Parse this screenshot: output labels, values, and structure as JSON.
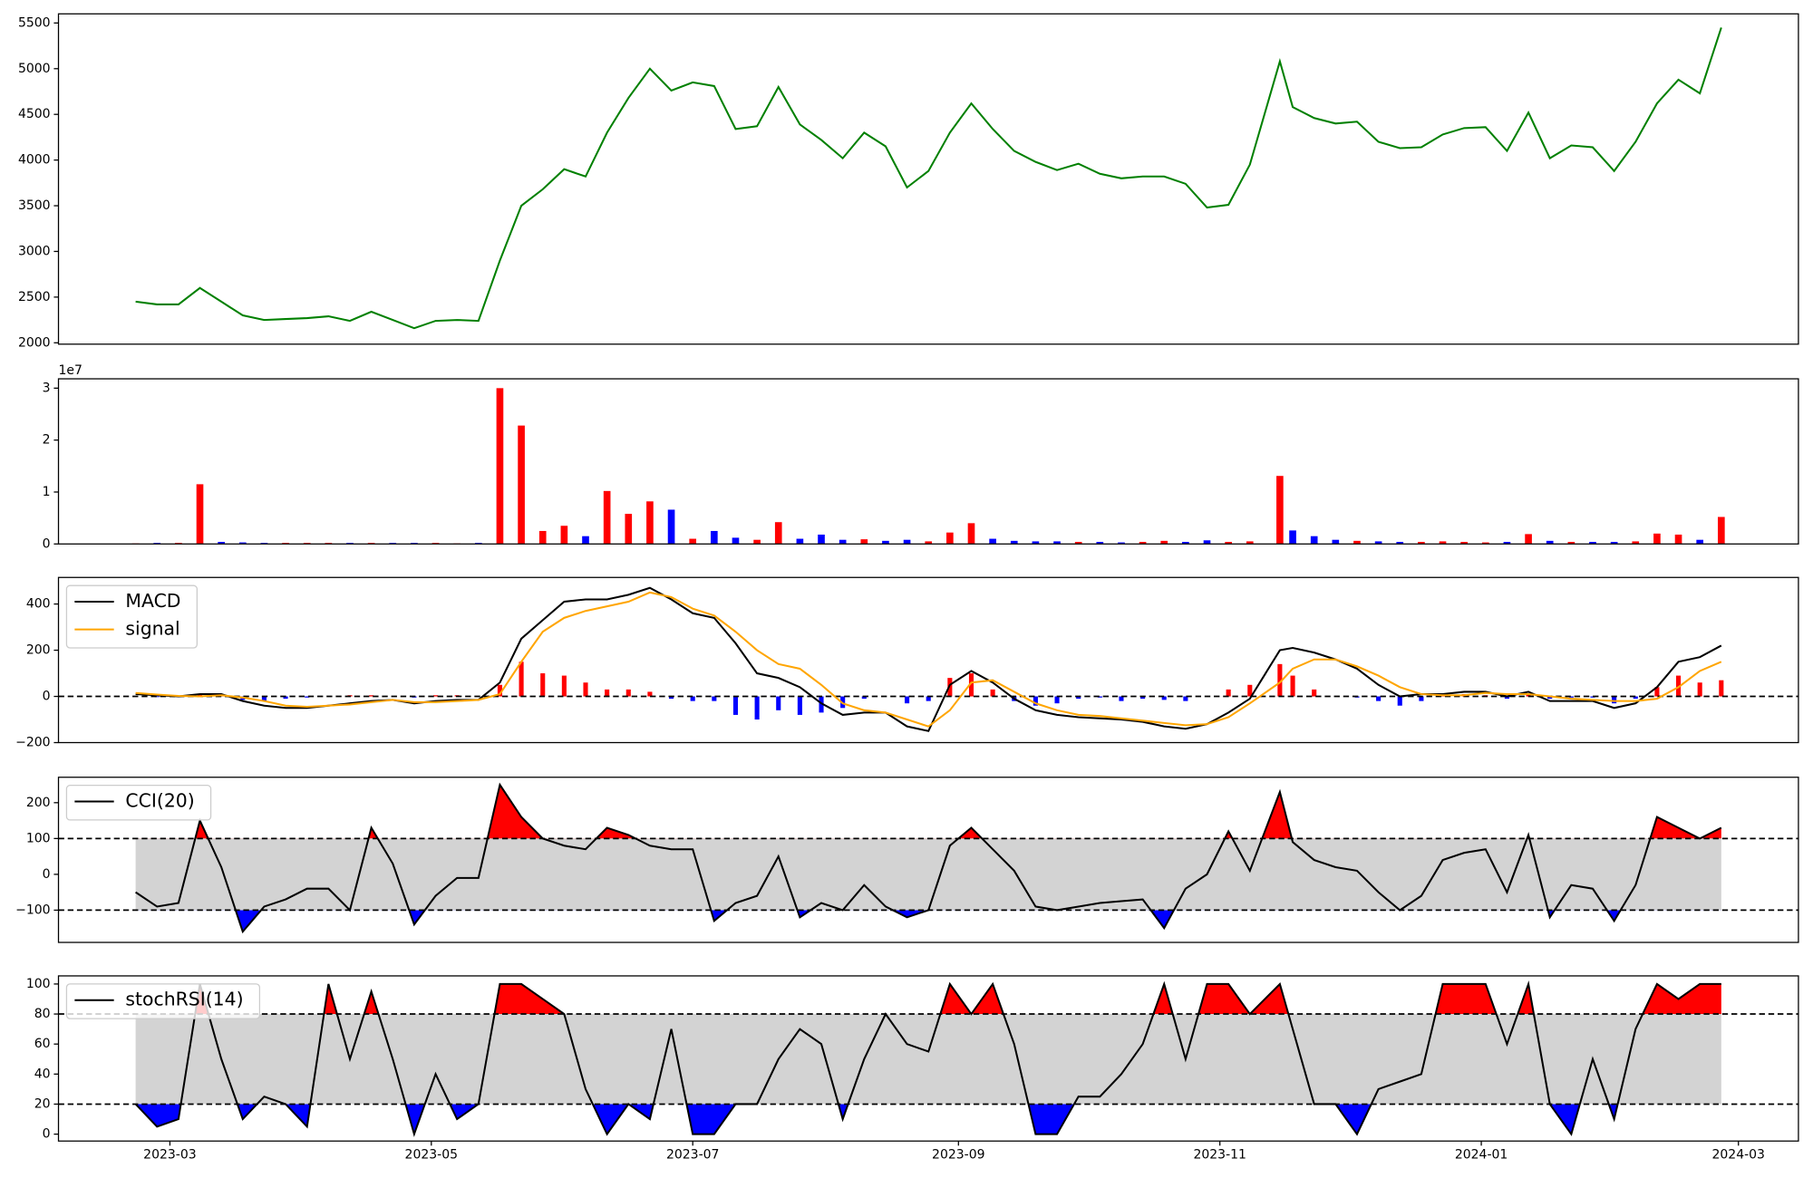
{
  "chart_data": [
    {
      "type": "line",
      "xlim": [
        19391,
        19797
      ],
      "x": [
        19409,
        19414,
        19419,
        19424,
        19429,
        19434,
        19439,
        19444,
        19449,
        19454,
        19459,
        19464,
        19469,
        19474,
        19479,
        19484,
        19489,
        19494,
        19499,
        19504,
        19509,
        19514,
        19519,
        19524,
        19529,
        19534,
        19539,
        19544,
        19549,
        19554,
        19559,
        19564,
        19569,
        19574,
        19579,
        19584,
        19589,
        19594,
        19599,
        19604,
        19609,
        19614,
        19619,
        19624,
        19629,
        19634,
        19639,
        19644,
        19649,
        19654,
        19659,
        19664,
        19669,
        19676,
        19679,
        19684,
        19689,
        19694,
        19699,
        19704,
        19709,
        19714,
        19719,
        19724,
        19729,
        19734,
        19739,
        19744,
        19749,
        19754,
        19759,
        19764,
        19769,
        19774,
        19779
      ],
      "series": [
        {
          "color": "green",
          "values": [
            2450,
            2420,
            2420,
            2600,
            2450,
            2300,
            2250,
            2260,
            2270,
            2290,
            2240,
            2340,
            2250,
            2160,
            2240,
            2250,
            2240,
            2900,
            3500,
            3680,
            3900,
            3820,
            4300,
            4680,
            5000,
            4760,
            4850,
            4810,
            4340,
            4370,
            4800,
            4390,
            4220,
            4020,
            4300,
            4150,
            3700,
            3880,
            4300,
            4620,
            4340,
            4100,
            3980,
            3890,
            3960,
            3850,
            3800,
            3820,
            3820,
            3740,
            3480,
            3510,
            3950,
            5080,
            4580,
            4460,
            4400,
            4420,
            4200,
            4130,
            4140,
            4280,
            4350,
            4360,
            4100,
            4520,
            4020,
            4160,
            4140,
            3880,
            4200,
            4620,
            4880,
            4730,
            5450
          ]
        }
      ],
      "ylim": [
        1985,
        5600
      ],
      "yticks": [
        2000,
        2500,
        3000,
        3500,
        4000,
        4500,
        5000,
        5500
      ]
    },
    {
      "type": "bar",
      "up_color": "red",
      "down_color": "blue",
      "offset_label": "1e7",
      "values": [
        100000,
        200000,
        200000,
        11500000,
        400000,
        300000,
        200000,
        200000,
        200000,
        200000,
        200000,
        200000,
        200000,
        200000,
        200000,
        100000,
        200000,
        30000000,
        22800000,
        2500000,
        3500000,
        1500000,
        10200000,
        5800000,
        8200000,
        6600000,
        1000000,
        2500000,
        1200000,
        800000,
        4200000,
        1000000,
        1800000,
        800000,
        900000,
        600000,
        800000,
        500000,
        2200000,
        4000000,
        1000000,
        600000,
        500000,
        500000,
        400000,
        400000,
        300000,
        400000,
        600000,
        400000,
        700000,
        400000,
        500000,
        13100000,
        2600000,
        1500000,
        800000,
        600000,
        500000,
        400000,
        400000,
        500000,
        400000,
        300000,
        400000,
        1900000,
        600000,
        400000,
        400000,
        400000,
        500000,
        2000000,
        1800000,
        800000,
        5200000
      ],
      "ylim": [
        0,
        31800000
      ],
      "yticks": [
        0,
        {
          "value": 10000000,
          "label": "1"
        },
        {
          "value": 20000000,
          "label": "2"
        },
        {
          "value": 30000000,
          "label": "3"
        }
      ]
    },
    {
      "type": "macd",
      "legend": "upper left",
      "series": [
        {
          "name": "MACD",
          "color": "black",
          "values": [
            10,
            5,
            0,
            10,
            10,
            -20,
            -40,
            -50,
            -50,
            -40,
            -30,
            -20,
            -15,
            -30,
            -20,
            -15,
            -15,
            60,
            250,
            330,
            410,
            420,
            420,
            440,
            470,
            420,
            360,
            340,
            230,
            100,
            80,
            40,
            -30,
            -80,
            -70,
            -70,
            -130,
            -150,
            50,
            110,
            60,
            -10,
            -60,
            -80,
            -90,
            -95,
            -100,
            -110,
            -130,
            -140,
            -120,
            -70,
            -10,
            200,
            210,
            190,
            160,
            120,
            50,
            0,
            10,
            10,
            20,
            20,
            0,
            20,
            -20,
            -20,
            -20,
            -50,
            -30,
            40,
            150,
            170,
            220
          ]
        },
        {
          "name": "signal",
          "color": "orange",
          "values": [
            15,
            8,
            2,
            0,
            5,
            -5,
            -20,
            -40,
            -45,
            -40,
            -35,
            -25,
            -15,
            -25,
            -25,
            -20,
            -15,
            10,
            150,
            280,
            340,
            370,
            390,
            410,
            450,
            430,
            380,
            350,
            280,
            200,
            140,
            120,
            50,
            -30,
            -60,
            -70,
            -100,
            -130,
            -60,
            60,
            70,
            20,
            -30,
            -60,
            -80,
            -85,
            -95,
            -105,
            -115,
            -125,
            -120,
            -90,
            -30,
            60,
            120,
            160,
            160,
            130,
            90,
            40,
            10,
            5,
            5,
            15,
            10,
            10,
            0,
            -10,
            -15,
            -20,
            -20,
            -10,
            40,
            110,
            150
          ]
        }
      ],
      "histogram": {
        "positive_color": "red",
        "negative_color": "blue",
        "values": [
          0,
          -3,
          -2,
          10,
          5,
          -15,
          -20,
          -10,
          -5,
          0,
          5,
          5,
          0,
          -5,
          5,
          5,
          0,
          50,
          150,
          100,
          90,
          60,
          30,
          30,
          20,
          -10,
          -20,
          -20,
          -80,
          -100,
          -60,
          -80,
          -70,
          -50,
          -10,
          0,
          -30,
          -20,
          80,
          100,
          30,
          -20,
          -40,
          -30,
          -10,
          -5,
          -20,
          -10,
          -15,
          -20,
          0,
          30,
          50,
          140,
          90,
          30,
          0,
          -5,
          -20,
          -40,
          -20,
          5,
          10,
          5,
          -10,
          10,
          -10,
          -5,
          -5,
          -30,
          -10,
          40,
          90,
          60,
          70
        ]
      },
      "hlines": [
        0
      ],
      "ylim": [
        -200,
        515
      ],
      "yticks": [
        {
          "value": -200,
          "label": "−200"
        },
        0,
        200,
        400
      ]
    },
    {
      "type": "oscillator",
      "legend": "upper left",
      "bounds": [
        -100,
        100
      ],
      "band_color": "lightgray",
      "upper_color": "red",
      "lower_color": "blue",
      "series": [
        {
          "name": "CCI(20)",
          "color": "black",
          "values": [
            -50,
            -90,
            -80,
            150,
            20,
            -160,
            -90,
            -70,
            -40,
            -40,
            -100,
            130,
            30,
            -140,
            -60,
            -10,
            -10,
            250,
            160,
            100,
            80,
            70,
            130,
            110,
            80,
            70,
            70,
            -130,
            -80,
            -60,
            50,
            -120,
            -80,
            -100,
            -30,
            -90,
            -120,
            -100,
            80,
            130,
            70,
            10,
            -90,
            -100,
            -90,
            -80,
            -75,
            -70,
            -150,
            -40,
            0,
            120,
            10,
            230,
            90,
            40,
            20,
            10,
            -50,
            -100,
            -60,
            40,
            60,
            70,
            -50,
            110,
            -120,
            -30,
            -40,
            -130,
            -30,
            160,
            130,
            100,
            130
          ]
        }
      ],
      "ylim": [
        -190,
        271
      ],
      "yticks": [
        {
          "value": -100,
          "label": "−100"
        },
        0,
        100,
        200
      ]
    },
    {
      "type": "oscillator",
      "legend": "upper left",
      "bounds": [
        20,
        80
      ],
      "band_color": "lightgray",
      "upper_color": "red",
      "lower_color": "blue",
      "series": [
        {
          "name": "stochRSI(14)",
          "color": "black",
          "values": [
            20,
            5,
            10,
            100,
            50,
            10,
            25,
            20,
            5,
            100,
            50,
            95,
            50,
            0,
            40,
            10,
            20,
            100,
            100,
            90,
            80,
            30,
            0,
            20,
            10,
            70,
            0,
            0,
            20,
            20,
            50,
            70,
            60,
            10,
            50,
            80,
            60,
            55,
            100,
            80,
            100,
            60,
            0,
            0,
            25,
            25,
            40,
            60,
            100,
            50,
            100,
            100,
            80,
            100,
            70,
            20,
            20,
            0,
            30,
            35,
            40,
            100,
            100,
            100,
            60,
            100,
            20,
            0,
            50,
            10,
            70,
            100,
            90,
            100,
            100
          ]
        }
      ],
      "ylim": [
        -4.6,
        105.4
      ],
      "yticks": [
        0,
        20,
        40,
        60,
        80,
        100
      ],
      "xticks": [
        {
          "value": 19417,
          "label": "2023-03"
        },
        {
          "value": 19478,
          "label": "2023-05"
        },
        {
          "value": 19539,
          "label": "2023-07"
        },
        {
          "value": 19601,
          "label": "2023-09"
        },
        {
          "value": 19662,
          "label": "2023-11"
        },
        {
          "value": 19723,
          "label": "2024-01"
        },
        {
          "value": 19783,
          "label": "2024-03"
        }
      ]
    }
  ]
}
